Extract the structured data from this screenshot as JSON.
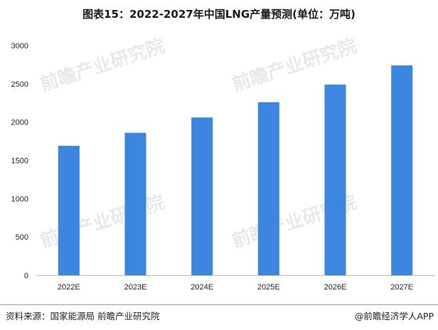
{
  "title": "图表15：2022-2027年中国LNG产量预测(单位：万吨)",
  "source": "资料来源：国家能源局 前瞻产业研究院",
  "brand": "@前瞻经济学人APP",
  "watermark_text": "前瞻产业研究院",
  "bar_color": "#3d86e0",
  "chart_data": {
    "type": "bar",
    "title": "图表15：2022-2027年中国LNG产量预测(单位：万吨)",
    "categories": [
      "2022E",
      "2023E",
      "2024E",
      "2025E",
      "2026E",
      "2027E"
    ],
    "values": [
      1690,
      1860,
      2060,
      2260,
      2490,
      2740
    ],
    "xlabel": "",
    "ylabel": "",
    "ylim": [
      0,
      3000
    ],
    "yticks": [
      0,
      500,
      1000,
      1500,
      2000,
      2500,
      3000
    ],
    "grid": false,
    "legend": "none"
  }
}
